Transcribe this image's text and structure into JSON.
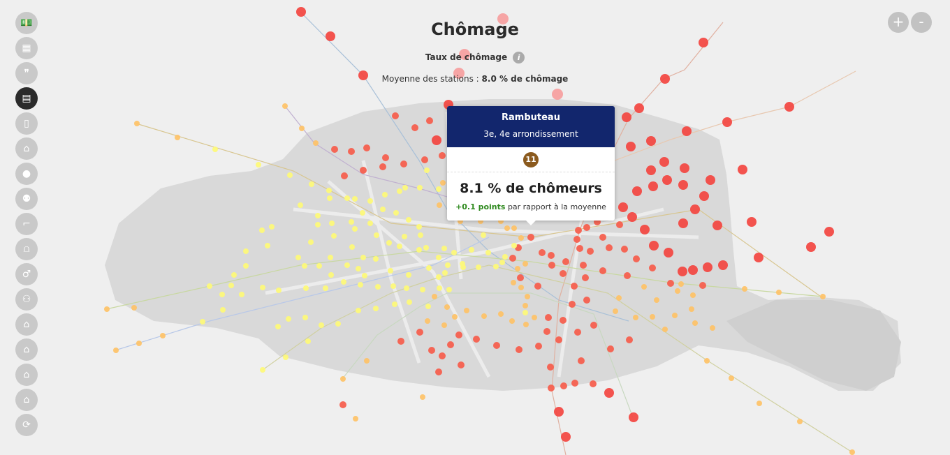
{
  "title": "Chômage",
  "subtitle": "Taux de chômage",
  "average": {
    "prefix": "Moyenne des stations :",
    "value": "8.0 % de chômage"
  },
  "zoom": {
    "in": "+",
    "out": "-"
  },
  "sidebar": [
    {
      "name": "money-icon",
      "glyph": "💵"
    },
    {
      "name": "calculator-icon",
      "glyph": "▦"
    },
    {
      "name": "quote-icon",
      "glyph": "❞"
    },
    {
      "name": "briefcase-icon",
      "glyph": "▤",
      "active": true
    },
    {
      "name": "book-icon",
      "glyph": "▯"
    },
    {
      "name": "graduation-cap-icon",
      "glyph": "⌂"
    },
    {
      "name": "person-icon",
      "glyph": "●"
    },
    {
      "name": "people-icon",
      "glyph": "⚉"
    },
    {
      "name": "cane-icon",
      "glyph": "⌐"
    },
    {
      "name": "cake-icon",
      "glyph": "⩍"
    },
    {
      "name": "gender-icon",
      "glyph": "♂"
    },
    {
      "name": "group-icon",
      "glyph": "⚇"
    },
    {
      "name": "house-icon",
      "glyph": "⌂"
    },
    {
      "name": "house-icon-2",
      "glyph": "⌂"
    },
    {
      "name": "house-icon-3",
      "glyph": "⌂"
    },
    {
      "name": "house-icon-4",
      "glyph": "⌂"
    },
    {
      "name": "refresh-icon",
      "glyph": "⟳"
    }
  ],
  "tooltip": {
    "station": "Rambuteau",
    "arrondissement": "3e, 4e arrondissement",
    "line": "11",
    "line_color": "#8b5a1e",
    "value": "8.1 % de chômeurs",
    "diff_points": "+0.1 points",
    "diff_suffix": "par rapport à la moyenne"
  },
  "colors": {
    "low": "#fdf97a",
    "mid_low": "#fdc36a",
    "mid": "#fb9a5a",
    "high": "#f6604f",
    "very_high": "#f24a44",
    "tooltip_header": "#12266d",
    "positive_diff": "#2f8a1f"
  }
}
